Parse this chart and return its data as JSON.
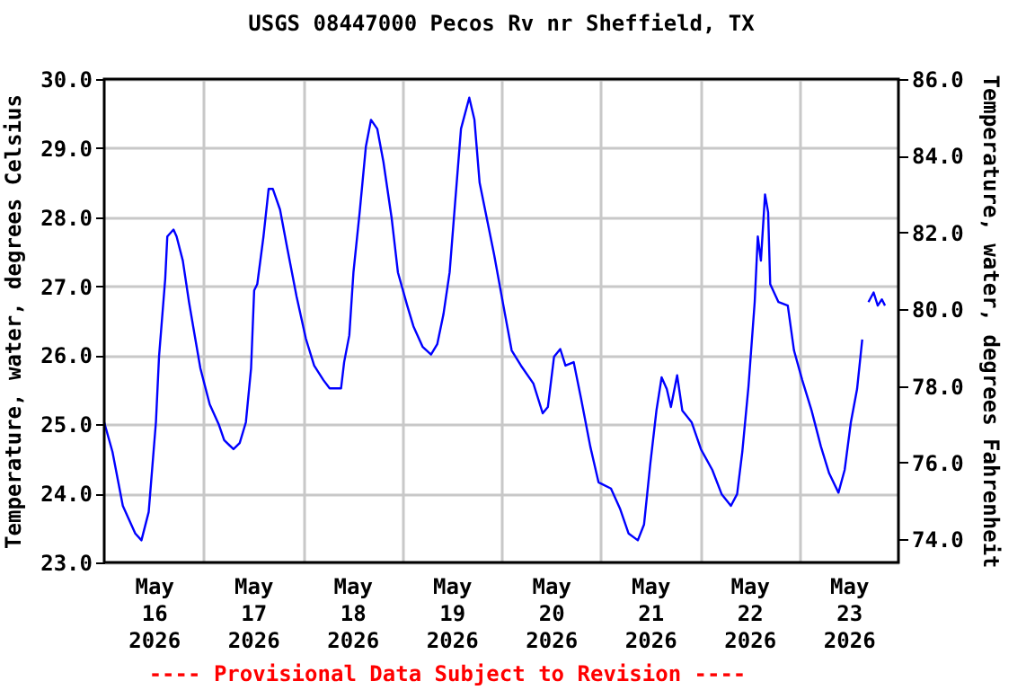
{
  "chart_data": {
    "type": "line",
    "title": "USGS 08447000 Pecos Rv nr Sheffield, TX",
    "ylabel": "Temperature, water, degrees Celsius",
    "y2label": "Temperature, water, degrees Fahrenheit",
    "annotations": [
      "---- Provisional Data Subject to Revision ----"
    ],
    "xlim": [
      "2026-05-16T00:00",
      "2026-05-24T00:00"
    ],
    "xticks": [
      {
        "value": "2026-05-16T12:00",
        "label": "May\n16\n2026"
      },
      {
        "value": "2026-05-17T12:00",
        "label": "May\n17\n2026"
      },
      {
        "value": "2026-05-18T12:00",
        "label": "May\n18\n2026"
      },
      {
        "value": "2026-05-19T12:00",
        "label": "May\n19\n2026"
      },
      {
        "value": "2026-05-20T12:00",
        "label": "May\n20\n2026"
      },
      {
        "value": "2026-05-21T12:00",
        "label": "May\n21\n2026"
      },
      {
        "value": "2026-05-22T12:00",
        "label": "May\n22\n2026"
      },
      {
        "value": "2026-05-23T12:00",
        "label": "May\n23\n2026"
      },
      {
        "value": "2026-05-17T00:00",
        "label": null
      },
      {
        "value": "2026-05-18T00:00",
        "label": null
      },
      {
        "value": "2026-05-19T00:00",
        "label": null
      },
      {
        "value": "2026-05-20T00:00",
        "label": null
      },
      {
        "value": "2026-05-21T00:00",
        "label": null
      },
      {
        "value": "2026-05-22T00:00",
        "label": null
      },
      {
        "value": "2026-05-23T00:00",
        "label": null
      }
    ],
    "ylim": [
      23,
      30
    ],
    "yticks": [
      {
        "value": 23,
        "label": "23.0"
      },
      {
        "value": 24,
        "label": "24.0"
      },
      {
        "value": 25,
        "label": "25.0"
      },
      {
        "value": 26,
        "label": "26.0"
      },
      {
        "value": 27,
        "label": "27.0"
      },
      {
        "value": 28,
        "label": "28.0"
      },
      {
        "value": 29,
        "label": "29.0"
      },
      {
        "value": 30,
        "label": "30.0"
      }
    ],
    "y2lim": [
      73.4,
      86
    ],
    "y2ticks": [
      {
        "value": 74,
        "label": "74.0"
      },
      {
        "value": 76,
        "label": "76.0"
      },
      {
        "value": 78,
        "label": "78.0"
      },
      {
        "value": 80,
        "label": "80.0"
      },
      {
        "value": 82,
        "label": "82.0"
      },
      {
        "value": 84,
        "label": "84.0"
      },
      {
        "value": 86,
        "label": "86.0"
      }
    ],
    "grid": true,
    "series": [
      {
        "color": "#0000ff",
        "x": [
          "2026-05-16T00:00",
          "2026-05-16T02:00",
          "2026-05-16T04:30",
          "2026-05-16T07:30",
          "2026-05-16T09:00",
          "2026-05-16T10:45",
          "2026-05-16T12:30",
          "2026-05-16T13:15",
          "2026-05-16T14:45",
          "2026-05-16T15:15",
          "2026-05-16T16:45",
          "2026-05-16T17:30",
          "2026-05-16T19:00",
          "2026-05-16T20:30",
          "2026-05-16T21:45",
          "2026-05-16T23:15",
          "2026-05-17T01:30",
          "2026-05-17T03:45",
          "2026-05-17T05:00",
          "2026-05-17T07:15",
          "2026-05-17T08:45",
          "2026-05-17T10:15",
          "2026-05-17T11:30",
          "2026-05-17T12:15",
          "2026-05-17T13:00",
          "2026-05-17T14:30",
          "2026-05-17T15:45",
          "2026-05-17T16:45",
          "2026-05-17T18:30",
          "2026-05-17T20:15",
          "2026-05-17T22:30",
          "2026-05-18T00:45",
          "2026-05-18T02:45",
          "2026-05-18T05:00",
          "2026-05-18T06:30",
          "2026-05-18T09:15",
          "2026-05-18T10:00",
          "2026-05-18T11:15",
          "2026-05-18T12:15",
          "2026-05-18T13:45",
          "2026-05-18T15:15",
          "2026-05-18T16:30",
          "2026-05-18T18:00",
          "2026-05-18T19:30",
          "2026-05-18T21:30",
          "2026-05-18T23:00",
          "2026-05-19T01:15",
          "2026-05-19T02:45",
          "2026-05-19T05:00",
          "2026-05-19T07:00",
          "2026-05-19T08:30",
          "2026-05-19T10:00",
          "2026-05-19T11:30",
          "2026-05-19T12:45",
          "2026-05-19T14:15",
          "2026-05-19T16:15",
          "2026-05-19T17:30",
          "2026-05-19T18:45",
          "2026-05-19T20:30",
          "2026-05-19T22:15",
          "2026-05-20T00:30",
          "2026-05-20T02:30",
          "2026-05-20T04:45",
          "2026-05-20T07:45",
          "2026-05-20T10:00",
          "2026-05-20T11:15",
          "2026-05-20T12:45",
          "2026-05-20T14:15",
          "2026-05-20T15:30",
          "2026-05-20T17:30",
          "2026-05-20T19:15",
          "2026-05-20T21:30",
          "2026-05-20T23:30",
          "2026-05-21T02:30",
          "2026-05-21T04:45",
          "2026-05-21T06:45",
          "2026-05-21T09:00",
          "2026-05-21T10:30",
          "2026-05-21T12:00",
          "2026-05-21T13:30",
          "2026-05-21T14:45",
          "2026-05-21T16:00",
          "2026-05-21T17:00",
          "2026-05-21T18:30",
          "2026-05-21T19:45",
          "2026-05-21T22:00",
          "2026-05-22T00:15",
          "2026-05-22T03:00",
          "2026-05-22T05:15",
          "2026-05-22T07:30",
          "2026-05-22T09:00",
          "2026-05-22T10:15",
          "2026-05-22T11:45",
          "2026-05-22T13:15",
          "2026-05-22T14:00",
          "2026-05-22T14:45",
          "2026-05-22T15:45",
          "2026-05-22T16:30",
          "2026-05-22T17:00",
          "2026-05-22T19:00",
          "2026-05-22T21:15",
          "2026-05-22T22:45",
          "2026-05-23T00:45",
          "2026-05-23T03:00",
          "2026-05-23T05:15",
          "2026-05-23T07:15",
          "2026-05-23T09:30",
          "2026-05-23T11:00",
          "2026-05-23T12:30",
          "2026-05-23T14:00",
          "2026-05-23T15:15",
          "2026-05-23T15:45",
          "2026-05-23T16:45",
          "2026-05-23T18:00",
          "2026-05-23T19:00",
          "2026-05-23T20:00",
          "2026-05-23T20:45"
        ],
        "values": [
          25.03,
          24.6,
          23.82,
          23.42,
          23.32,
          23.73,
          25.03,
          25.98,
          27.11,
          27.72,
          27.82,
          27.72,
          27.37,
          26.77,
          26.33,
          25.81,
          25.29,
          24.99,
          24.77,
          24.64,
          24.73,
          25.03,
          25.81,
          26.94,
          27.03,
          27.72,
          28.41,
          28.41,
          28.11,
          27.55,
          26.85,
          26.24,
          25.85,
          25.64,
          25.52,
          25.52,
          25.9,
          26.29,
          27.2,
          28.07,
          29.02,
          29.41,
          29.28,
          28.8,
          27.98,
          27.2,
          26.72,
          26.42,
          26.12,
          26.01,
          26.16,
          26.59,
          27.2,
          28.15,
          29.28,
          29.73,
          29.41,
          28.5,
          27.98,
          27.46,
          26.72,
          26.07,
          25.85,
          25.59,
          25.16,
          25.25,
          25.98,
          26.09,
          25.85,
          25.9,
          25.38,
          24.68,
          24.16,
          24.07,
          23.77,
          23.42,
          23.32,
          23.55,
          24.42,
          25.2,
          25.68,
          25.51,
          25.25,
          25.71,
          25.2,
          25.03,
          24.64,
          24.34,
          23.99,
          23.82,
          23.99,
          24.6,
          25.55,
          26.77,
          27.72,
          27.37,
          28.33,
          28.07,
          27.03,
          26.77,
          26.72,
          26.07,
          25.64,
          25.2,
          24.68,
          24.29,
          24.01,
          24.34,
          25.03,
          25.51,
          26.23,
          null,
          26.77,
          26.91,
          26.72,
          26.81,
          26.72
        ]
      }
    ]
  }
}
